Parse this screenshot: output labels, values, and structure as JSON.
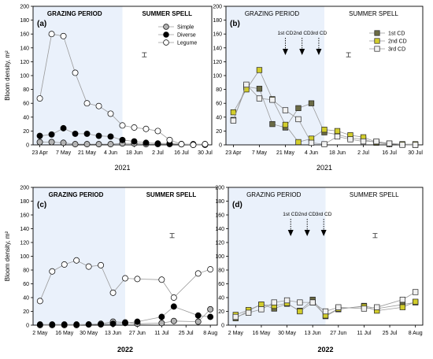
{
  "colors": {
    "grazing_shade": "#eaf1fb",
    "simple_fill": "#b3b3b3",
    "diverse_fill": "#000000",
    "legume_fill": "#ffffff",
    "cd1_fill": "#6b6b45",
    "cd2_fill": "#d2cd2c",
    "cd3_fill": "#f1f1f1",
    "axis": "#000000"
  },
  "chart_data": [
    {
      "panel": "(a)",
      "type": "line",
      "marker": "circle",
      "grazing_label": "GRAZING PERIOD",
      "summer_label": "SUMMER SPELL",
      "year_label": "2021",
      "ylabel": "Bloom density, m²",
      "ylim": [
        0,
        200
      ],
      "yticks": [
        0,
        20,
        40,
        60,
        80,
        100,
        120,
        140,
        160,
        180,
        200
      ],
      "xlim": [
        "2021-04-19",
        "2021-08-03"
      ],
      "xticks": [
        "23 Apr",
        "7 May",
        "21 May",
        "4 Jun",
        "18 Jun",
        "2 Jul",
        "16 Jul",
        "30 Jul"
      ],
      "xtick_dates": [
        "2021-04-23",
        "2021-05-07",
        "2021-05-21",
        "2021-06-04",
        "2021-06-18",
        "2021-07-02",
        "2021-07-16",
        "2021-07-30"
      ],
      "grazing_end": "2021-06-11",
      "error_bar": {
        "x": "2021-06-24",
        "y": 130,
        "err": 3
      },
      "legend": [
        "Simple",
        "Diverse",
        "Legume"
      ],
      "series": [
        {
          "name": "Simple",
          "style": "simple",
          "x": [
            "2021-04-23",
            "2021-04-30",
            "2021-05-07",
            "2021-05-14",
            "2021-05-21",
            "2021-05-28",
            "2021-06-04",
            "2021-06-11",
            "2021-06-18",
            "2021-06-25",
            "2021-07-02",
            "2021-07-09",
            "2021-07-16",
            "2021-07-23",
            "2021-07-30"
          ],
          "y": [
            4,
            4,
            3,
            1,
            1,
            1,
            1,
            2,
            2,
            1,
            1,
            1,
            1,
            0,
            0
          ]
        },
        {
          "name": "Diverse",
          "style": "diverse",
          "x": [
            "2021-04-23",
            "2021-04-30",
            "2021-05-07",
            "2021-05-14",
            "2021-05-21",
            "2021-05-28",
            "2021-06-04",
            "2021-06-11",
            "2021-06-18",
            "2021-06-25",
            "2021-07-02",
            "2021-07-09",
            "2021-07-16",
            "2021-07-23",
            "2021-07-30"
          ],
          "y": [
            13,
            15,
            24,
            16,
            16,
            13,
            12,
            7,
            5,
            3,
            2,
            2,
            1,
            1,
            1
          ]
        },
        {
          "name": "Legume",
          "style": "legume",
          "x": [
            "2021-04-23",
            "2021-04-30",
            "2021-05-07",
            "2021-05-14",
            "2021-05-21",
            "2021-05-28",
            "2021-06-04",
            "2021-06-11",
            "2021-06-18",
            "2021-06-25",
            "2021-07-02",
            "2021-07-09",
            "2021-07-16",
            "2021-07-23",
            "2021-07-30"
          ],
          "y": [
            67,
            160,
            157,
            104,
            60,
            56,
            45,
            28,
            25,
            23,
            20,
            7,
            1,
            0,
            1
          ]
        }
      ]
    },
    {
      "panel": "(b)",
      "type": "line",
      "marker": "square",
      "grazing_label": "GRAZING PERIOD",
      "summer_label": "SUMMER SPELL",
      "year_label": "2021",
      "ylabel": "",
      "ylim": [
        0,
        200
      ],
      "yticks": [
        0,
        20,
        40,
        60,
        80,
        100,
        120,
        140,
        160,
        180,
        200
      ],
      "xlim": [
        "2021-04-19",
        "2021-08-03"
      ],
      "xticks": [
        "23 Apr",
        "7 May",
        "21 May",
        "4 Jun",
        "18 Jun",
        "2 Jul",
        "16 Jul",
        "30 Jul"
      ],
      "xtick_dates": [
        "2021-04-23",
        "2021-05-07",
        "2021-05-21",
        "2021-06-04",
        "2021-06-18",
        "2021-07-02",
        "2021-07-16",
        "2021-07-30"
      ],
      "grazing_end": "2021-06-11",
      "error_bar": {
        "x": "2021-06-24",
        "y": 130,
        "err": 3
      },
      "legend": [
        "1st CD",
        "2nd CD",
        "3rd CD"
      ],
      "cd_markers": [
        {
          "label": "1st CD",
          "x": "2021-05-21"
        },
        {
          "label": "2nd CD",
          "x": "2021-05-30"
        },
        {
          "label": "3rd CD",
          "x": "2021-06-08"
        }
      ],
      "series": [
        {
          "name": "1st CD",
          "style": "cd1",
          "x": [
            "2021-04-23",
            "2021-04-30",
            "2021-05-07",
            "2021-05-14",
            "2021-05-21",
            "2021-05-28",
            "2021-06-04",
            "2021-06-11",
            "2021-06-18",
            "2021-06-25",
            "2021-07-02",
            "2021-07-09",
            "2021-07-16",
            "2021-07-23",
            "2021-07-30"
          ],
          "y": [
            36,
            84,
            81,
            30,
            25,
            53,
            60,
            18,
            15,
            10,
            8,
            3,
            1,
            1,
            0
          ]
        },
        {
          "name": "2nd CD",
          "style": "cd2",
          "x": [
            "2021-04-23",
            "2021-04-30",
            "2021-05-07",
            "2021-05-14",
            "2021-05-21",
            "2021-05-28",
            "2021-06-04",
            "2021-06-11",
            "2021-06-18",
            "2021-06-25",
            "2021-07-02",
            "2021-07-09",
            "2021-07-16",
            "2021-07-23",
            "2021-07-30"
          ],
          "y": [
            47,
            80,
            108,
            66,
            29,
            4,
            9,
            22,
            20,
            14,
            11,
            4,
            2,
            1,
            1
          ]
        },
        {
          "name": "3rd CD",
          "style": "cd3",
          "x": [
            "2021-04-23",
            "2021-04-30",
            "2021-05-07",
            "2021-05-14",
            "2021-05-21",
            "2021-05-28",
            "2021-06-04",
            "2021-06-11",
            "2021-06-18",
            "2021-06-25",
            "2021-07-02",
            "2021-07-09",
            "2021-07-16",
            "2021-07-23",
            "2021-07-30"
          ],
          "y": [
            35,
            87,
            67,
            65,
            50,
            37,
            3,
            1,
            12,
            8,
            5,
            5,
            2,
            0,
            0
          ]
        }
      ]
    },
    {
      "panel": "(c)",
      "type": "line",
      "marker": "circle",
      "grazing_label": "GRAZING PERIOD",
      "summer_label": "SUMMER SPELL",
      "year_label": "2022",
      "ylabel": "Bloom density, m²",
      "ylim": [
        0,
        200
      ],
      "yticks": [
        0,
        20,
        40,
        60,
        80,
        100,
        120,
        140,
        160,
        180,
        200
      ],
      "xlim": [
        "2022-04-28",
        "2022-08-12"
      ],
      "xticks": [
        "2 May",
        "16 May",
        "30 May",
        "13 Jun",
        "27 Jun",
        "11 Jul",
        "25 Jul",
        "8 Aug"
      ],
      "xtick_dates": [
        "2022-05-02",
        "2022-05-16",
        "2022-05-30",
        "2022-06-13",
        "2022-06-27",
        "2022-07-11",
        "2022-07-25",
        "2022-08-08"
      ],
      "grazing_end": "2022-06-20",
      "error_bar": {
        "x": "2022-07-17",
        "y": 130,
        "err": 3
      },
      "legend": [],
      "series": [
        {
          "name": "Simple",
          "style": "simple",
          "x": [
            "2022-05-02",
            "2022-05-09",
            "2022-05-16",
            "2022-05-23",
            "2022-05-30",
            "2022-06-06",
            "2022-06-13",
            "2022-06-20",
            "2022-06-27",
            "2022-07-11",
            "2022-07-18",
            "2022-08-01",
            "2022-08-08"
          ],
          "y": [
            0,
            0,
            0,
            0,
            1,
            2,
            5,
            4,
            2,
            3,
            6,
            5,
            23
          ]
        },
        {
          "name": "Diverse",
          "style": "diverse",
          "x": [
            "2022-05-02",
            "2022-05-09",
            "2022-05-16",
            "2022-05-23",
            "2022-05-30",
            "2022-06-06",
            "2022-06-13",
            "2022-06-20",
            "2022-06-27",
            "2022-07-11",
            "2022-07-18",
            "2022-08-01",
            "2022-08-08"
          ],
          "y": [
            1,
            1,
            1,
            1,
            1,
            1,
            2,
            3,
            5,
            12,
            27,
            14,
            12
          ]
        },
        {
          "name": "Legume",
          "style": "legume",
          "x": [
            "2022-05-02",
            "2022-05-09",
            "2022-05-16",
            "2022-05-23",
            "2022-05-30",
            "2022-06-06",
            "2022-06-13",
            "2022-06-20",
            "2022-06-27",
            "2022-07-11",
            "2022-07-18",
            "2022-08-01",
            "2022-08-08"
          ],
          "y": [
            35,
            78,
            88,
            94,
            85,
            87,
            47,
            68,
            67,
            66,
            40,
            75,
            81
          ]
        }
      ]
    },
    {
      "panel": "(d)",
      "type": "line",
      "marker": "square",
      "grazing_label": "GRAZING PERIOD",
      "summer_label": "SUMMER SPELL",
      "year_label": "2022",
      "ylabel": "",
      "ylim": [
        0,
        200
      ],
      "yticks": [
        0,
        20,
        40,
        60,
        80,
        100,
        120,
        140,
        160,
        180,
        200
      ],
      "xlim": [
        "2022-04-28",
        "2022-08-12"
      ],
      "xticks": [
        "2 May",
        "16 May",
        "30 May",
        "13 Jun",
        "27 Jun",
        "11 Jul",
        "25 Jul",
        "8 Aug"
      ],
      "xtick_dates": [
        "2022-05-02",
        "2022-05-16",
        "2022-05-30",
        "2022-06-13",
        "2022-06-27",
        "2022-07-11",
        "2022-07-25",
        "2022-08-08"
      ],
      "grazing_end": "2022-06-20",
      "error_bar": {
        "x": "2022-07-17",
        "y": 130,
        "err": 3
      },
      "legend": [],
      "cd_markers": [
        {
          "label": "1st CD",
          "x": "2022-06-01"
        },
        {
          "label": "2nd CD",
          "x": "2022-06-10"
        },
        {
          "label": "3rd CD",
          "x": "2022-06-19"
        }
      ],
      "series": [
        {
          "name": "1st CD",
          "style": "cd1",
          "x": [
            "2022-05-02",
            "2022-05-09",
            "2022-05-16",
            "2022-05-23",
            "2022-05-30",
            "2022-06-06",
            "2022-06-13",
            "2022-06-20",
            "2022-06-27",
            "2022-07-11",
            "2022-07-18",
            "2022-08-01",
            "2022-08-08"
          ],
          "y": [
            10,
            21,
            30,
            24,
            31,
            21,
            37,
            13,
            23,
            28,
            24,
            30,
            33
          ]
        },
        {
          "name": "2nd CD",
          "style": "cd2",
          "x": [
            "2022-05-02",
            "2022-05-09",
            "2022-05-16",
            "2022-05-23",
            "2022-05-30",
            "2022-06-06",
            "2022-06-13",
            "2022-06-20",
            "2022-06-27",
            "2022-07-11",
            "2022-07-18",
            "2022-08-01",
            "2022-08-08"
          ],
          "y": [
            15,
            22,
            30,
            28,
            32,
            20,
            33,
            14,
            24,
            27,
            21,
            26,
            34
          ]
        },
        {
          "name": "3rd CD",
          "style": "cd3",
          "x": [
            "2022-05-02",
            "2022-05-09",
            "2022-05-16",
            "2022-05-23",
            "2022-05-30",
            "2022-06-06",
            "2022-06-13",
            "2022-06-20",
            "2022-06-27",
            "2022-07-11",
            "2022-07-18",
            "2022-08-01",
            "2022-08-08"
          ],
          "y": [
            12,
            18,
            23,
            33,
            36,
            33,
            33,
            20,
            26,
            24,
            26,
            37,
            48
          ]
        }
      ]
    }
  ]
}
